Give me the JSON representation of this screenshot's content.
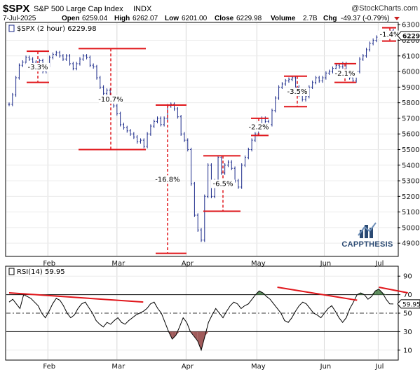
{
  "header": {
    "symbol": "$SPX",
    "name": "S&P 500 Large Cap Index",
    "exchange": "INDX",
    "watermark": "@StockCharts.com",
    "date": "7-Jul-2025",
    "open_label": "Open",
    "open": "6259.04",
    "high_label": "High",
    "high": "6262.07",
    "low_label": "Low",
    "low": "6201.00",
    "close_label": "Close",
    "close": "6229.98",
    "volume_label": "Volume",
    "volume": "2.7B",
    "chg_label": "Chg",
    "chg": "-49.37 (-0.79%)"
  },
  "logo": {
    "text": "CAPPTHESIS",
    "color": "#2b4a73"
  },
  "colors": {
    "price_bar": "#1b2a8a",
    "annotation": "#e0161b",
    "rsi": "#000000",
    "rsi_fill_high": "#5a8a5a",
    "rsi_fill_low": "#a05a5a"
  },
  "chart_data": [
    {
      "type": "line",
      "legend": "$SPX (2 hour) 6229.98",
      "y_ticks": [
        4900,
        5000,
        5100,
        5200,
        5300,
        5400,
        5500,
        5600,
        5700,
        5800,
        5900,
        6000,
        6100,
        6200,
        6300
      ],
      "last_value_tag": "6229.98",
      "ylim": [
        4820,
        6310
      ],
      "x_labels": [
        "Feb",
        "Mar",
        "Apr",
        "May",
        "Jun",
        "Jul"
      ],
      "series": [
        {
          "values": [
            5790,
            5850,
            5960,
            6040,
            6060,
            6090,
            6080,
            6060,
            6050,
            6070,
            6000,
            6040,
            6090,
            6110,
            6120,
            6100,
            6080,
            6100,
            6050,
            6020,
            6050,
            6080,
            6100,
            6090,
            6040,
            6030,
            5960,
            5900,
            5860,
            5880,
            5830,
            5780,
            5730,
            5660,
            5640,
            5620,
            5600,
            5580,
            5550,
            5560,
            5520,
            5600,
            5650,
            5680,
            5700,
            5660,
            5700,
            5780,
            5790,
            5760,
            5710,
            5600,
            5560,
            5500,
            5280,
            5080,
            4985,
            4920,
            5200,
            5400,
            5200,
            5300,
            5450,
            5350,
            5400,
            5420,
            5380,
            5300,
            5260,
            5400,
            5450,
            5500,
            5560,
            5600,
            5650,
            5700,
            5680,
            5660,
            5750,
            5830,
            5900,
            5920,
            5940,
            5950,
            5960,
            5900,
            5850,
            5820,
            5840,
            5900,
            5930,
            5960,
            5940,
            5960,
            5990,
            6000,
            6020,
            6040,
            6030,
            6050,
            6000,
            5960,
            5940,
            6000,
            6080,
            6100,
            6140,
            6180,
            6200,
            6220,
            6230,
            6240,
            6250,
            6262,
            6230
          ]
        }
      ],
      "annotations": [
        {
          "label": "-3.3%",
          "top": 6130,
          "bottom": 5930
        },
        {
          "label": "-10.7%",
          "top": 6147,
          "bottom": 5500
        },
        {
          "label": "-16.8%",
          "top": 5785,
          "bottom": 4835
        },
        {
          "label": "-6.5%",
          "top": 5460,
          "bottom": 5105
        },
        {
          "label": "-2.2%",
          "top": 5700,
          "bottom": 5590
        },
        {
          "label": "-3.5%",
          "top": 5970,
          "bottom": 5775
        },
        {
          "label": "-2.1%",
          "top": 6050,
          "bottom": 5930
        },
        {
          "label": "-1.4%",
          "top": 6280,
          "bottom": 6195
        }
      ]
    },
    {
      "type": "line",
      "legend": "RSI(14) 59.95",
      "y_ticks": [
        10,
        30,
        50,
        70,
        90
      ],
      "last_value_tag": "59.95",
      "ylim": [
        0,
        100
      ],
      "x_labels": [
        "Feb",
        "Mar",
        "Apr",
        "May",
        "Jun",
        "Jul"
      ],
      "series": [
        {
          "values": [
            62,
            65,
            60,
            55,
            70,
            68,
            66,
            62,
            58,
            50,
            45,
            52,
            60,
            66,
            64,
            58,
            50,
            45,
            48,
            55,
            60,
            62,
            56,
            50,
            42,
            38,
            35,
            40,
            38,
            42,
            45,
            40,
            38,
            42,
            45,
            48,
            50,
            52,
            55,
            60,
            62,
            55,
            50,
            40,
            30,
            22,
            26,
            35,
            45,
            40,
            30,
            25,
            20,
            10,
            25,
            40,
            48,
            55,
            50,
            45,
            52,
            58,
            62,
            60,
            55,
            58,
            60,
            65,
            70,
            74,
            72,
            68,
            65,
            60,
            55,
            50,
            42,
            40,
            45,
            52,
            58,
            62,
            60,
            55,
            50,
            48,
            45,
            50,
            55,
            58,
            52,
            45,
            40,
            45,
            55,
            62,
            70,
            72,
            70,
            65,
            68,
            74,
            76,
            72,
            65,
            60,
            59.95
          ]
        }
      ],
      "trendlines": [
        {
          "from": [
            0,
            72
          ],
          "to": [
            37,
            62
          ]
        },
        {
          "from": [
            74,
            78
          ],
          "to": [
            96,
            64
          ]
        },
        {
          "from": [
            102,
            78
          ],
          "to": [
            110,
            72
          ]
        }
      ]
    }
  ]
}
